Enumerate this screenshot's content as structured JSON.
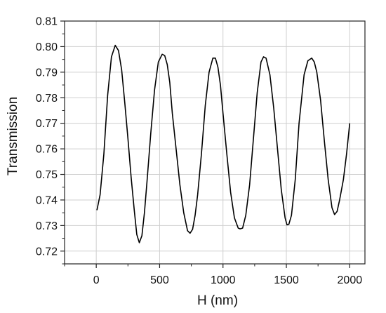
{
  "chart_data": {
    "type": "line",
    "title": "",
    "xlabel": "H (nm)",
    "ylabel": "Transmission",
    "xlim": [
      -250,
      2120
    ],
    "ylim": [
      0.715,
      0.81
    ],
    "x_ticks": [
      0,
      500,
      1000,
      1500,
      2000
    ],
    "y_ticks": [
      0.72,
      0.73,
      0.74,
      0.75,
      0.76,
      0.77,
      0.78,
      0.79,
      0.8,
      0.81
    ],
    "x_tick_labels": [
      "0",
      "500",
      "1000",
      "1500",
      "2000"
    ],
    "y_tick_labels": [
      "0.72",
      "0.73",
      "0.74",
      "0.75",
      "0.76",
      "0.77",
      "0.78",
      "0.79",
      "0.80",
      "0.81"
    ],
    "grid": true,
    "legend": "none",
    "line_color": "#000000",
    "grid_color": "#cfcfcf",
    "series": [
      {
        "x": [
          5,
          30,
          60,
          90,
          120,
          150,
          175,
          200,
          225,
          250,
          275,
          300,
          320,
          340,
          360,
          380,
          400,
          430,
          460,
          490,
          520,
          540,
          560,
          580,
          600,
          630,
          660,
          690,
          720,
          740,
          760,
          780,
          800,
          830,
          860,
          890,
          920,
          940,
          960,
          980,
          1000,
          1030,
          1060,
          1090,
          1120,
          1135,
          1155,
          1180,
          1210,
          1240,
          1270,
          1300,
          1320,
          1340,
          1370,
          1400,
          1430,
          1460,
          1490,
          1505,
          1520,
          1540,
          1570,
          1600,
          1640,
          1670,
          1700,
          1720,
          1740,
          1770,
          1800,
          1830,
          1860,
          1880,
          1900,
          1920,
          1950,
          1975,
          2000
        ],
        "y": [
          0.736,
          0.742,
          0.758,
          0.781,
          0.796,
          0.8005,
          0.7985,
          0.791,
          0.778,
          0.764,
          0.749,
          0.736,
          0.7265,
          0.7233,
          0.726,
          0.735,
          0.747,
          0.766,
          0.783,
          0.794,
          0.797,
          0.7965,
          0.793,
          0.786,
          0.774,
          0.76,
          0.746,
          0.735,
          0.728,
          0.727,
          0.7285,
          0.734,
          0.742,
          0.758,
          0.777,
          0.79,
          0.7955,
          0.7955,
          0.792,
          0.785,
          0.774,
          0.758,
          0.743,
          0.733,
          0.729,
          0.7287,
          0.729,
          0.734,
          0.746,
          0.764,
          0.782,
          0.794,
          0.796,
          0.7955,
          0.789,
          0.776,
          0.76,
          0.744,
          0.733,
          0.7303,
          0.7305,
          0.734,
          0.748,
          0.77,
          0.789,
          0.7945,
          0.7955,
          0.794,
          0.79,
          0.779,
          0.763,
          0.748,
          0.737,
          0.7343,
          0.7355,
          0.74,
          0.748,
          0.758,
          0.77
        ]
      }
    ]
  }
}
